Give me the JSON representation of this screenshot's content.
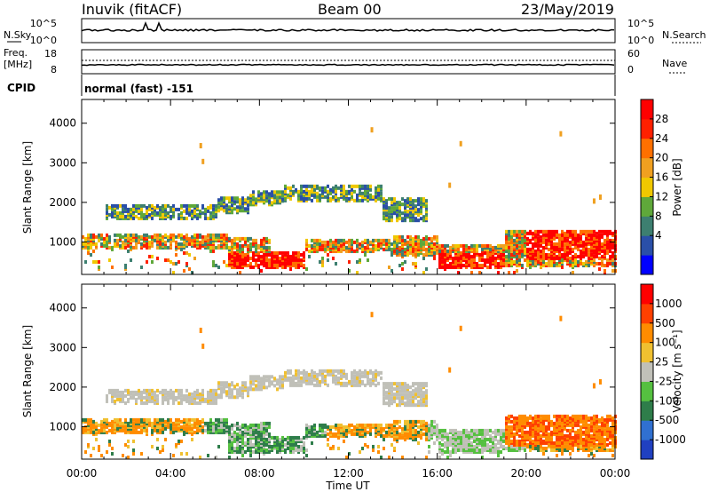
{
  "header": {
    "station": "Inuvik (fitACF)",
    "beam": "Beam 00",
    "date": "23/May/2019"
  },
  "top_panels": {
    "nsky_label": "N.Sky",
    "nsky_ticks": [
      "10^5",
      "10^0"
    ],
    "nsearch_label": "N.Search",
    "nsearch_ticks": [
      "10^5",
      "10^0"
    ],
    "freq_label": "Freq.",
    "freq_unit": "[MHz]",
    "freq_ticks": [
      "18",
      "8"
    ],
    "nave_label": "Nave",
    "nave_ticks": [
      "60",
      "0"
    ],
    "cpid_label": "CPID",
    "cpid_text": "normal (fast) -151"
  },
  "chart_data": [
    {
      "type": "heatmap",
      "name": "power",
      "ylabel": "Slant Range [km]",
      "xlabel": "",
      "ylim": [
        180,
        4600
      ],
      "yticks": [
        1000,
        2000,
        3000,
        4000
      ],
      "xlim": [
        0,
        24
      ],
      "colorbar": {
        "label": "Power [dB]",
        "ticks": [
          "28",
          "24",
          "20",
          "16",
          "12",
          "8",
          "4"
        ],
        "colors": [
          "#0000ff",
          "#2a4fa8",
          "#3d7f70",
          "#5fa83a",
          "#f0c800",
          "#f0a020",
          "#ff7000",
          "#ff2000",
          "#ff0000"
        ]
      }
    },
    {
      "type": "heatmap",
      "name": "velocity",
      "ylabel": "Slant Range [km]",
      "xlabel": "",
      "ylim": [
        180,
        4600
      ],
      "yticks": [
        1000,
        2000,
        3000,
        4000
      ],
      "xlim": [
        0,
        24
      ],
      "colorbar": {
        "label": "Velocity [m s⁻¹]",
        "ticks": [
          "1000",
          "500",
          "100",
          "25",
          "-25",
          "-100",
          "-500",
          "-1000"
        ],
        "colors": [
          "#2040c0",
          "#3070d0",
          "#2e7d4a",
          "#55c040",
          "#c0c0b8",
          "#f0c030",
          "#ff8c00",
          "#ff4000",
          "#ff0000"
        ]
      }
    }
  ],
  "time_axis": {
    "label": "Time UT",
    "ticks": [
      "00:00",
      "04:00",
      "08:00",
      "12:00",
      "16:00",
      "20:00",
      "00:00"
    ]
  }
}
